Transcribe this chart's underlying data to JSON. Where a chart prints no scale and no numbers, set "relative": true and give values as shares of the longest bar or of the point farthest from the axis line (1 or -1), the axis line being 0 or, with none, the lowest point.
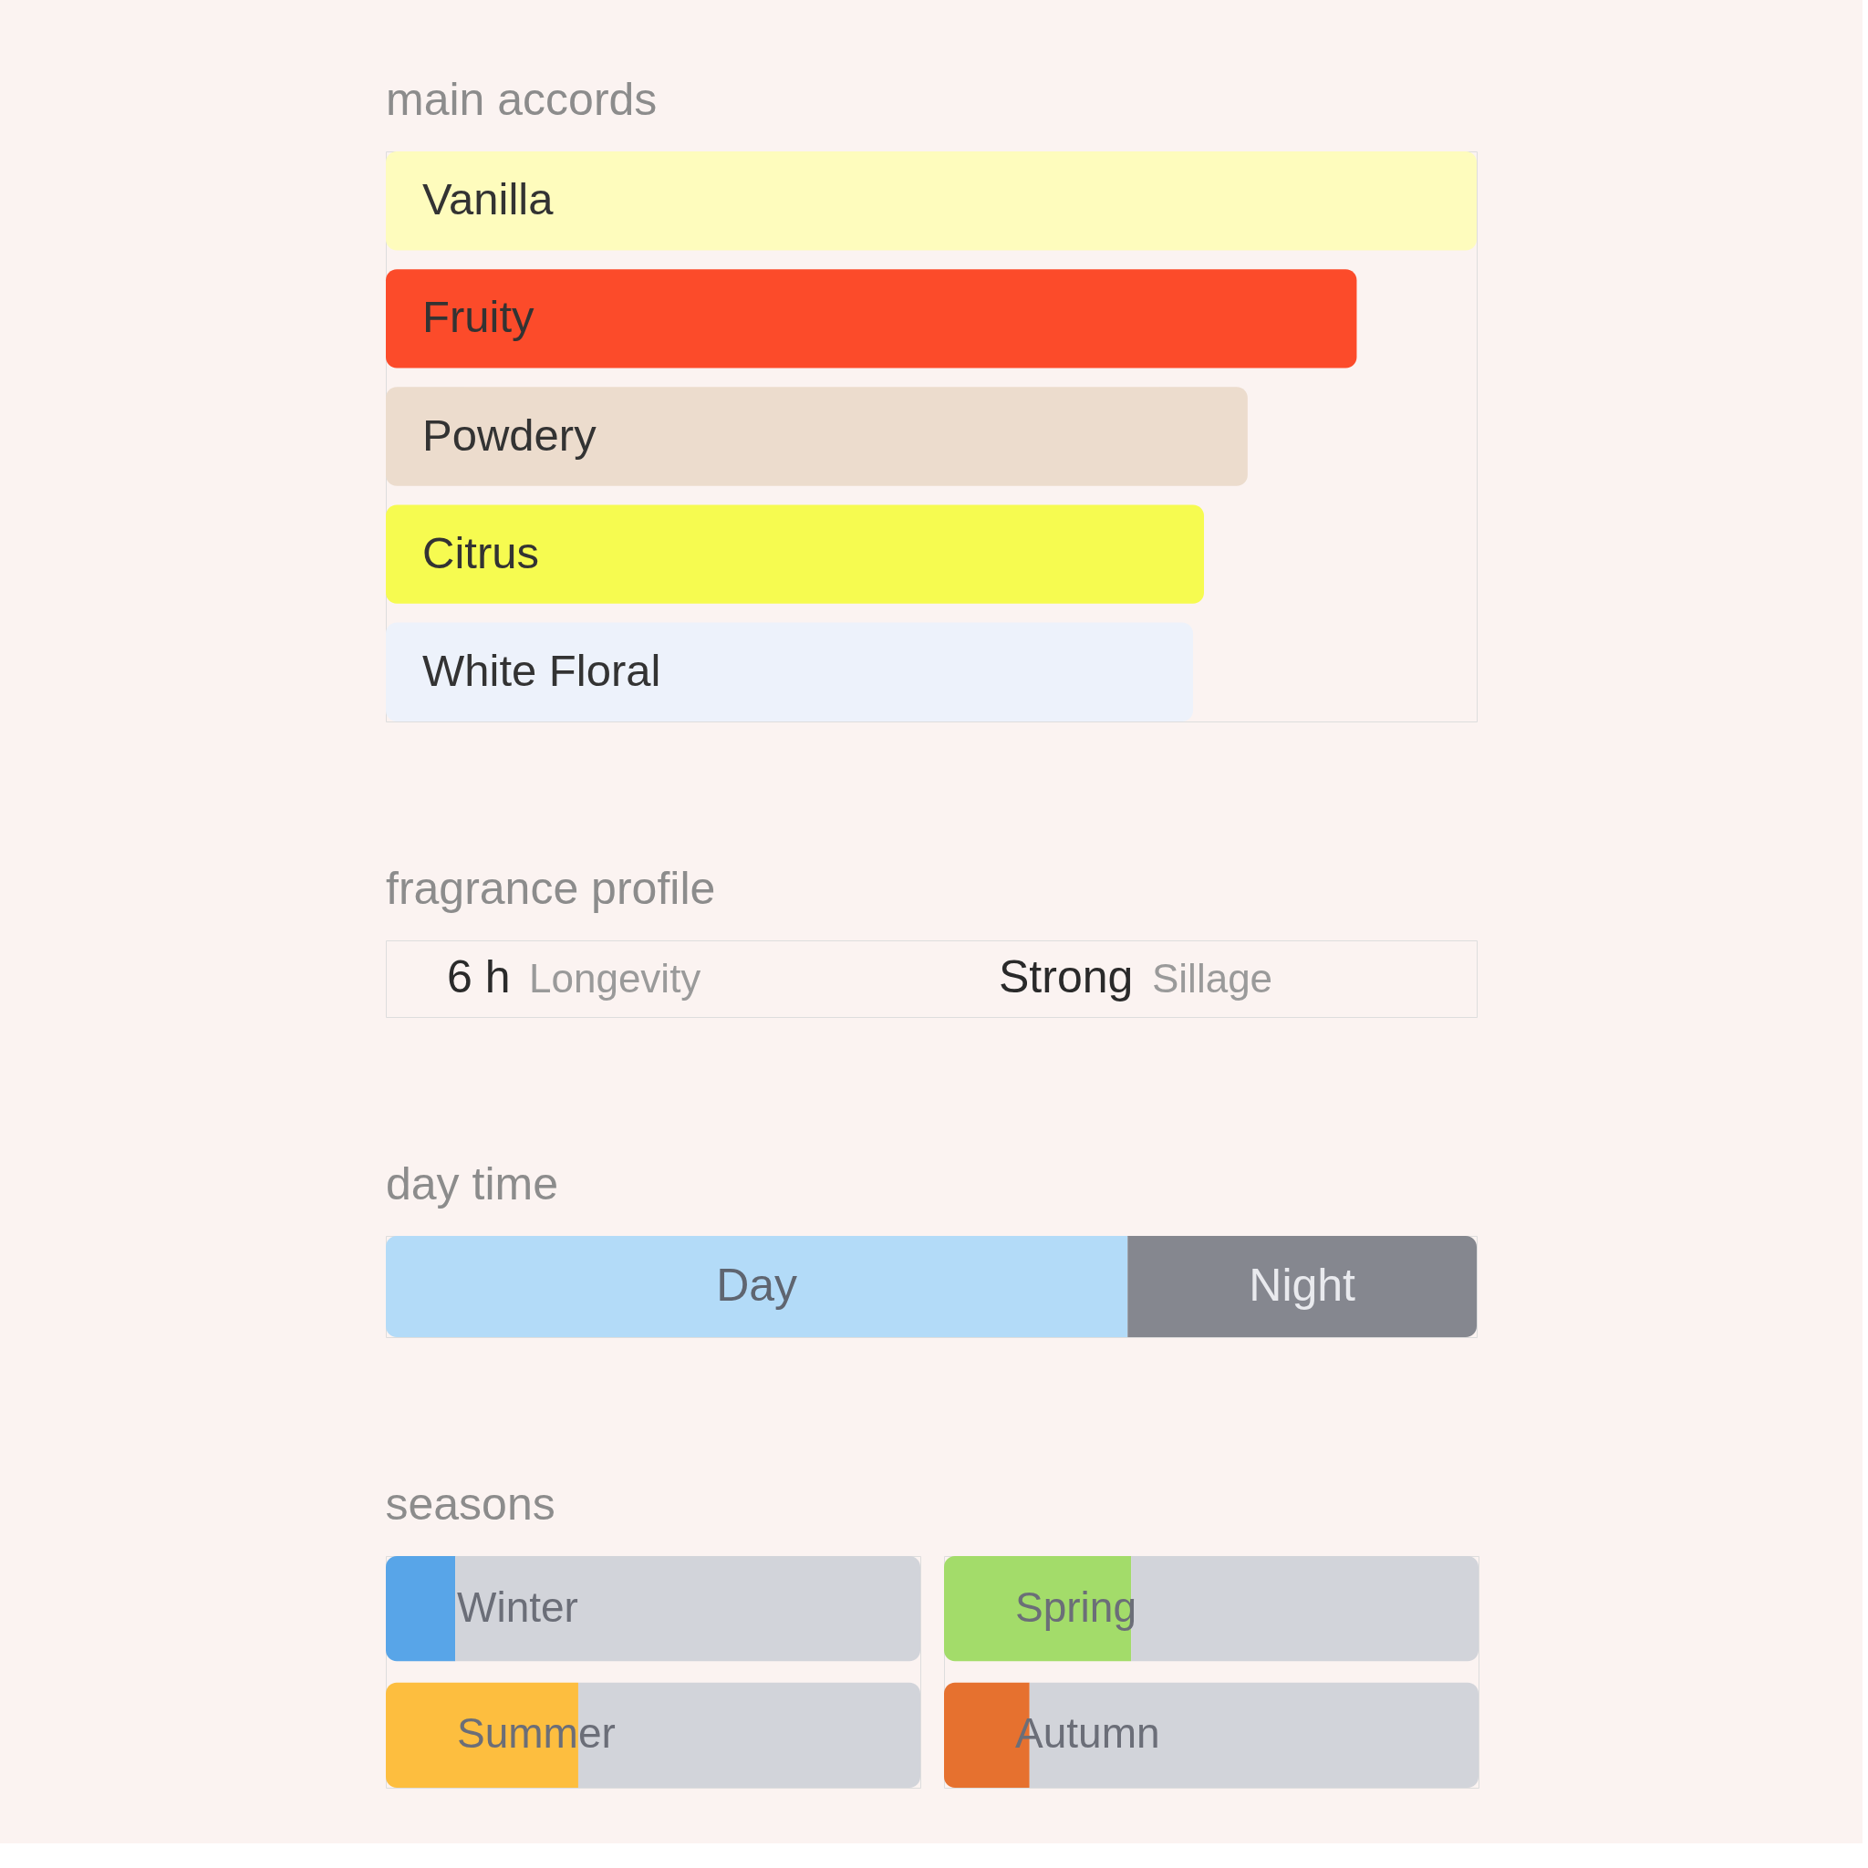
{
  "chart_data": [
    {
      "type": "bar",
      "title": "main accords",
      "orientation": "horizontal",
      "relative": true,
      "categories": [
        "Vanilla",
        "Fruity",
        "Powdery",
        "Citrus",
        "White Floral"
      ],
      "values": [
        1,
        0.89,
        0.79,
        0.75,
        0.74
      ],
      "colors": [
        "#fefcbd",
        "#fc4b2a",
        "#ecdccd",
        "#f6fb50",
        "#edf2fb"
      ]
    },
    {
      "type": "other",
      "title": "fragrance profile",
      "annotations": [
        "6 h",
        "Longevity",
        "Strong",
        "Sillage"
      ]
    },
    {
      "type": "bar",
      "title": "day time",
      "orientation": "horizontal",
      "relative": true,
      "stacked": true,
      "categories": [
        null
      ],
      "series": [
        {
          "name": "Day",
          "color": "#b3dbf8",
          "values": [
            0.68
          ]
        },
        {
          "name": "Night",
          "color": "#85878f",
          "values": [
            0.32
          ]
        }
      ]
    },
    {
      "type": "bar",
      "title": "seasons",
      "orientation": "horizontal",
      "relative": true,
      "stacked": true,
      "categories": [
        "Winter",
        "Summer"
      ],
      "series": [
        {
          "colors": [
            "#58a5e8",
            "#fdbe3f"
          ],
          "values": [
            0.13,
            0.36
          ]
        },
        {
          "color": "#d2d4da",
          "values": [
            0.87,
            0.64
          ]
        }
      ]
    },
    {
      "type": "bar",
      "orientation": "horizontal",
      "relative": true,
      "stacked": true,
      "categories": [
        "Spring",
        "Autumn"
      ],
      "series": [
        {
          "colors": [
            "#a3dc6a",
            "#e6712f"
          ],
          "values": [
            0.35,
            0.16
          ]
        },
        {
          "color": "#d2d4da",
          "values": [
            0.65,
            0.84
          ]
        }
      ]
    }
  ]
}
